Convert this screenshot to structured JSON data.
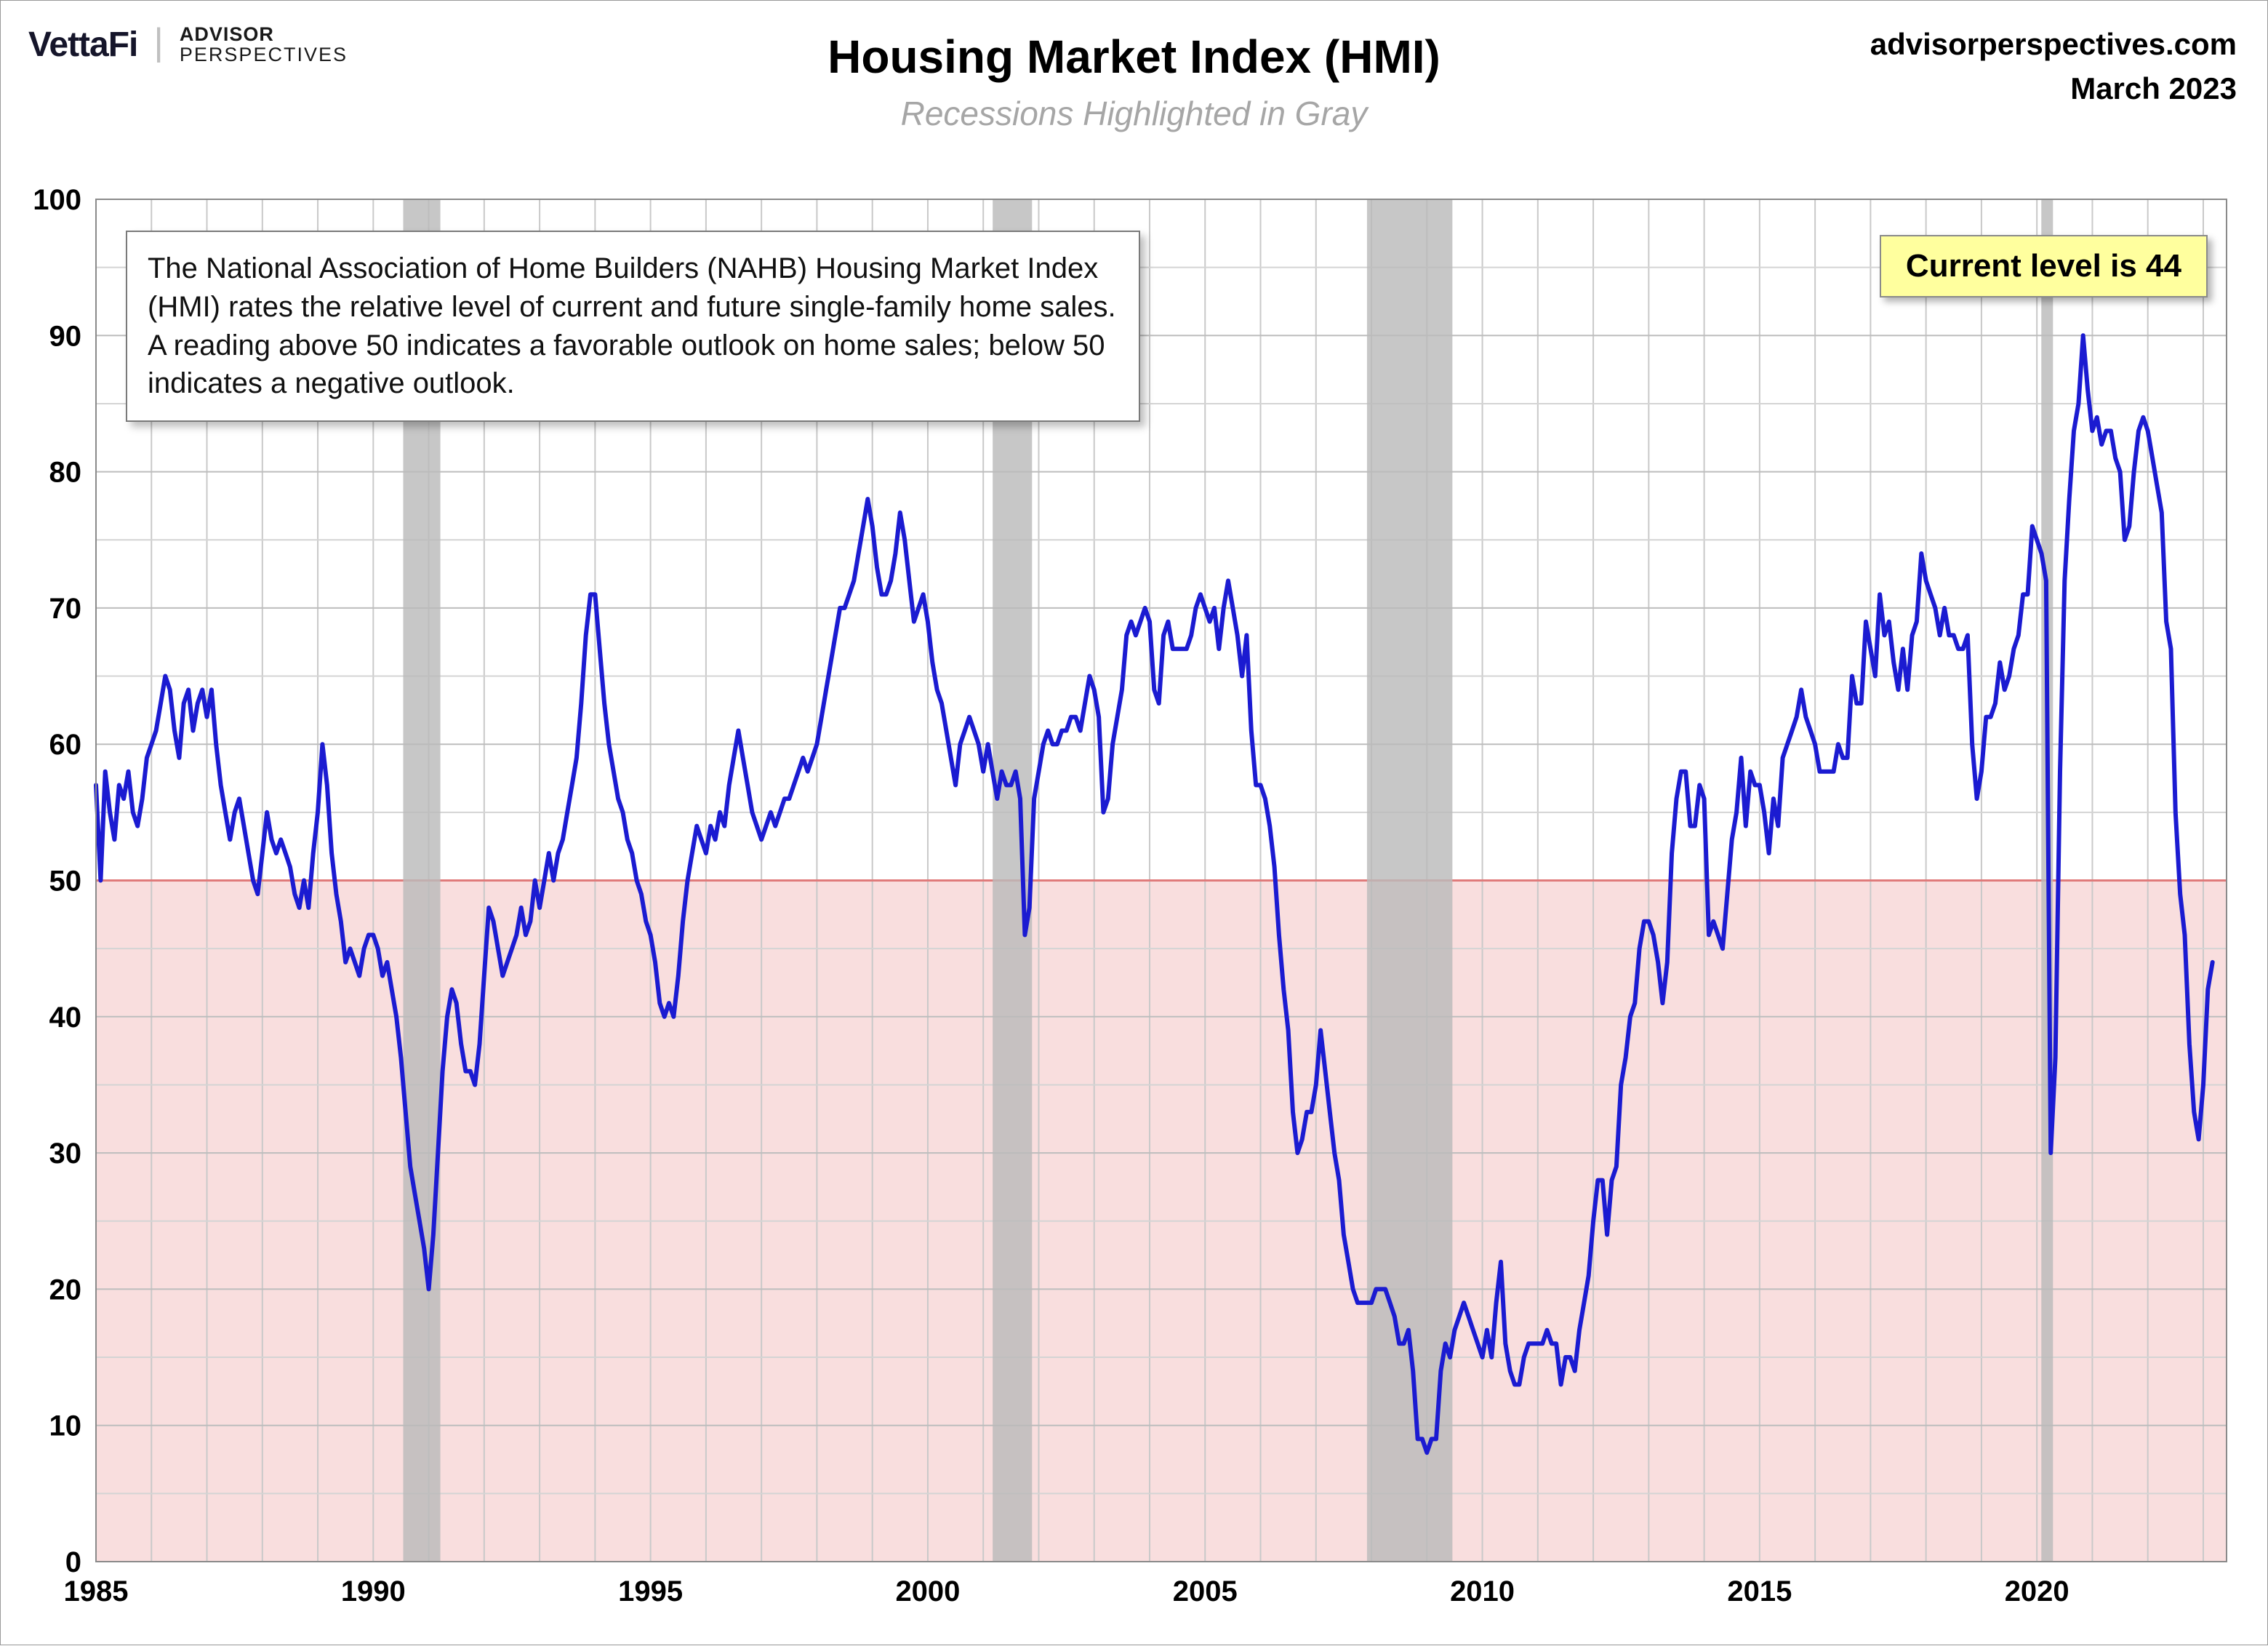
{
  "header": {
    "brand_vettafi": "VettaFi",
    "brand_sep": "|",
    "brand_advisor": "ADVISOR",
    "brand_perspectives": "PERSPECTIVES",
    "title": "Housing Market Index (HMI)",
    "subtitle": "Recessions Highlighted in Gray",
    "source_site": "advisorperspectives.com",
    "source_date": "March 2023"
  },
  "annotation": {
    "text": "The National Association of Home Builders (NAHB) Housing Market Index (HMI) rates the relative level of current and future single-family home sales. A reading above 50 indicates a favorable outlook on home sales; below 50 indicates a negative outlook."
  },
  "badge": {
    "text": "Current level is 44"
  },
  "chart_data": {
    "type": "line",
    "title": "Housing Market Index (HMI)",
    "subtitle": "Recessions Highlighted in Gray",
    "xlabel": "",
    "ylabel": "",
    "x_domain": [
      1985,
      2023.42
    ],
    "ylim": [
      0,
      100
    ],
    "y_major_ticks": [
      0,
      10,
      20,
      30,
      40,
      50,
      60,
      70,
      80,
      90,
      100
    ],
    "y_minor_step": 5,
    "x_tick_years": [
      1985,
      1990,
      1995,
      2000,
      2005,
      2010,
      2015,
      2020
    ],
    "grid": true,
    "threshold": {
      "value": 50,
      "meaning": "above 50 favorable, below 50 negative"
    },
    "recessions": [
      {
        "start": 1990.54,
        "end": 1991.21
      },
      {
        "start": 2001.17,
        "end": 2001.88
      },
      {
        "start": 2007.92,
        "end": 2009.46
      },
      {
        "start": 2020.08,
        "end": 2020.29
      }
    ],
    "current_level": 44,
    "series": [
      {
        "name": "HMI",
        "frequency": "monthly",
        "x_start": 1985.0,
        "x_step": 0.0833333,
        "values": [
          57,
          50,
          58,
          55,
          53,
          57,
          56,
          58,
          55,
          54,
          56,
          59,
          60,
          61,
          63,
          65,
          64,
          61,
          59,
          63,
          64,
          61,
          63,
          64,
          62,
          64,
          60,
          57,
          55,
          53,
          55,
          56,
          54,
          52,
          50,
          49,
          52,
          55,
          53,
          52,
          53,
          52,
          51,
          49,
          48,
          50,
          48,
          52,
          55,
          60,
          57,
          52,
          49,
          47,
          44,
          45,
          44,
          43,
          45,
          46,
          46,
          45,
          43,
          44,
          42,
          40,
          37,
          33,
          29,
          27,
          25,
          23,
          20,
          24,
          30,
          36,
          40,
          42,
          41,
          38,
          36,
          36,
          35,
          38,
          43,
          48,
          47,
          45,
          43,
          44,
          45,
          46,
          48,
          46,
          47,
          50,
          48,
          50,
          52,
          50,
          52,
          53,
          55,
          57,
          59,
          63,
          68,
          71,
          71,
          67,
          63,
          60,
          58,
          56,
          55,
          53,
          52,
          50,
          49,
          47,
          46,
          44,
          41,
          40,
          41,
          40,
          43,
          47,
          50,
          52,
          54,
          53,
          52,
          54,
          53,
          55,
          54,
          57,
          59,
          61,
          59,
          57,
          55,
          54,
          53,
          54,
          55,
          54,
          55,
          56,
          56,
          57,
          58,
          59,
          58,
          59,
          60,
          62,
          64,
          66,
          68,
          70,
          70,
          71,
          72,
          74,
          76,
          78,
          76,
          73,
          71,
          71,
          72,
          74,
          77,
          75,
          72,
          69,
          70,
          71,
          69,
          66,
          64,
          63,
          61,
          59,
          57,
          60,
          61,
          62,
          61,
          60,
          58,
          60,
          58,
          56,
          58,
          57,
          57,
          58,
          56,
          46,
          48,
          56,
          58,
          60,
          61,
          60,
          60,
          61,
          61,
          62,
          62,
          61,
          63,
          65,
          64,
          62,
          55,
          56,
          60,
          62,
          64,
          68,
          69,
          68,
          69,
          70,
          69,
          64,
          63,
          68,
          69,
          67,
          67,
          67,
          67,
          68,
          70,
          71,
          70,
          69,
          70,
          67,
          70,
          72,
          70,
          68,
          65,
          68,
          61,
          57,
          57,
          56,
          54,
          51,
          46,
          42,
          39,
          33,
          30,
          31,
          33,
          33,
          35,
          39,
          36,
          33,
          30,
          28,
          24,
          22,
          20,
          19,
          19,
          19,
          19,
          20,
          20,
          20,
          19,
          18,
          16,
          16,
          17,
          14,
          9,
          9,
          8,
          9,
          9,
          14,
          16,
          15,
          17,
          18,
          19,
          18,
          17,
          16,
          15,
          17,
          15,
          19,
          22,
          16,
          14,
          13,
          13,
          15,
          16,
          16,
          16,
          16,
          17,
          16,
          16,
          13,
          15,
          15,
          14,
          17,
          19,
          21,
          25,
          28,
          28,
          24,
          28,
          29,
          35,
          37,
          40,
          41,
          45,
          47,
          47,
          46,
          44,
          41,
          44,
          52,
          56,
          58,
          58,
          54,
          54,
          57,
          56,
          46,
          47,
          46,
          45,
          49,
          53,
          55,
          59,
          54,
          58,
          57,
          57,
          55,
          52,
          56,
          54,
          59,
          60,
          61,
          62,
          64,
          62,
          61,
          60,
          58,
          58,
          58,
          58,
          60,
          59,
          59,
          65,
          63,
          63,
          69,
          67,
          65,
          71,
          68,
          69,
          66,
          64,
          67,
          64,
          68,
          69,
          74,
          72,
          71,
          70,
          68,
          70,
          68,
          68,
          67,
          67,
          68,
          60,
          56,
          58,
          62,
          62,
          63,
          66,
          64,
          65,
          67,
          68,
          71,
          71,
          76,
          75,
          74,
          72,
          30,
          37,
          58,
          72,
          78,
          83,
          85,
          90,
          86,
          83,
          84,
          82,
          83,
          83,
          81,
          80,
          75,
          76,
          80,
          83,
          84,
          83,
          81,
          79,
          77,
          69,
          67,
          55,
          49,
          46,
          38,
          33,
          31,
          35,
          42,
          44
        ]
      }
    ],
    "colors": {
      "line": "#1b1bd1",
      "below_fill": "#f9dede",
      "threshold_line": "#e07b7b",
      "recession": "#bbbbbb",
      "grid_major": "#bdbdbd",
      "grid_minor": "#d4d4d4",
      "grid_year": "#c9c9c9",
      "plot_border": "#8a8a8a"
    },
    "legend": "none"
  }
}
